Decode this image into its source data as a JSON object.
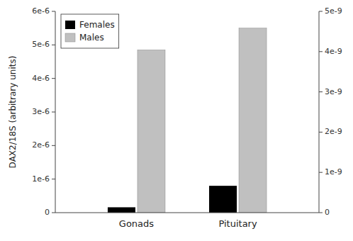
{
  "chart_data": {
    "type": "bar",
    "ylabel": "DAX2/18S (arbitrary units)",
    "categories": [
      "Gonads",
      "Pituitary"
    ],
    "series": [
      {
        "name": "Females",
        "color": "#000000",
        "values": [
          1.6e-07,
          8e-07
        ]
      },
      {
        "name": "Males",
        "color": "#c0c0c0",
        "values": [
          4.85e-06,
          5.5e-06
        ]
      }
    ],
    "ylim": [
      0,
      6e-06
    ],
    "yticks": [
      0,
      {
        "value": 1e-06,
        "label": "1e-6"
      },
      {
        "value": 2e-06,
        "label": "2e-6"
      },
      {
        "value": 3e-06,
        "label": "3e-6"
      },
      {
        "value": 4e-06,
        "label": "4e-6"
      },
      {
        "value": 5e-06,
        "label": "5e-6"
      },
      {
        "value": 6e-06,
        "label": "6e-6"
      }
    ],
    "y2lim": [
      0,
      5e-09
    ],
    "y2ticks": [
      0,
      {
        "value": 1e-09,
        "label": "1e-9"
      },
      {
        "value": 2e-09,
        "label": "2e-9"
      },
      {
        "value": 3e-09,
        "label": "3e-9"
      },
      {
        "value": 4e-09,
        "label": "4e-9"
      },
      {
        "value": 5e-09,
        "label": "5e-9"
      }
    ],
    "grid": false,
    "legend": "upper-left"
  }
}
